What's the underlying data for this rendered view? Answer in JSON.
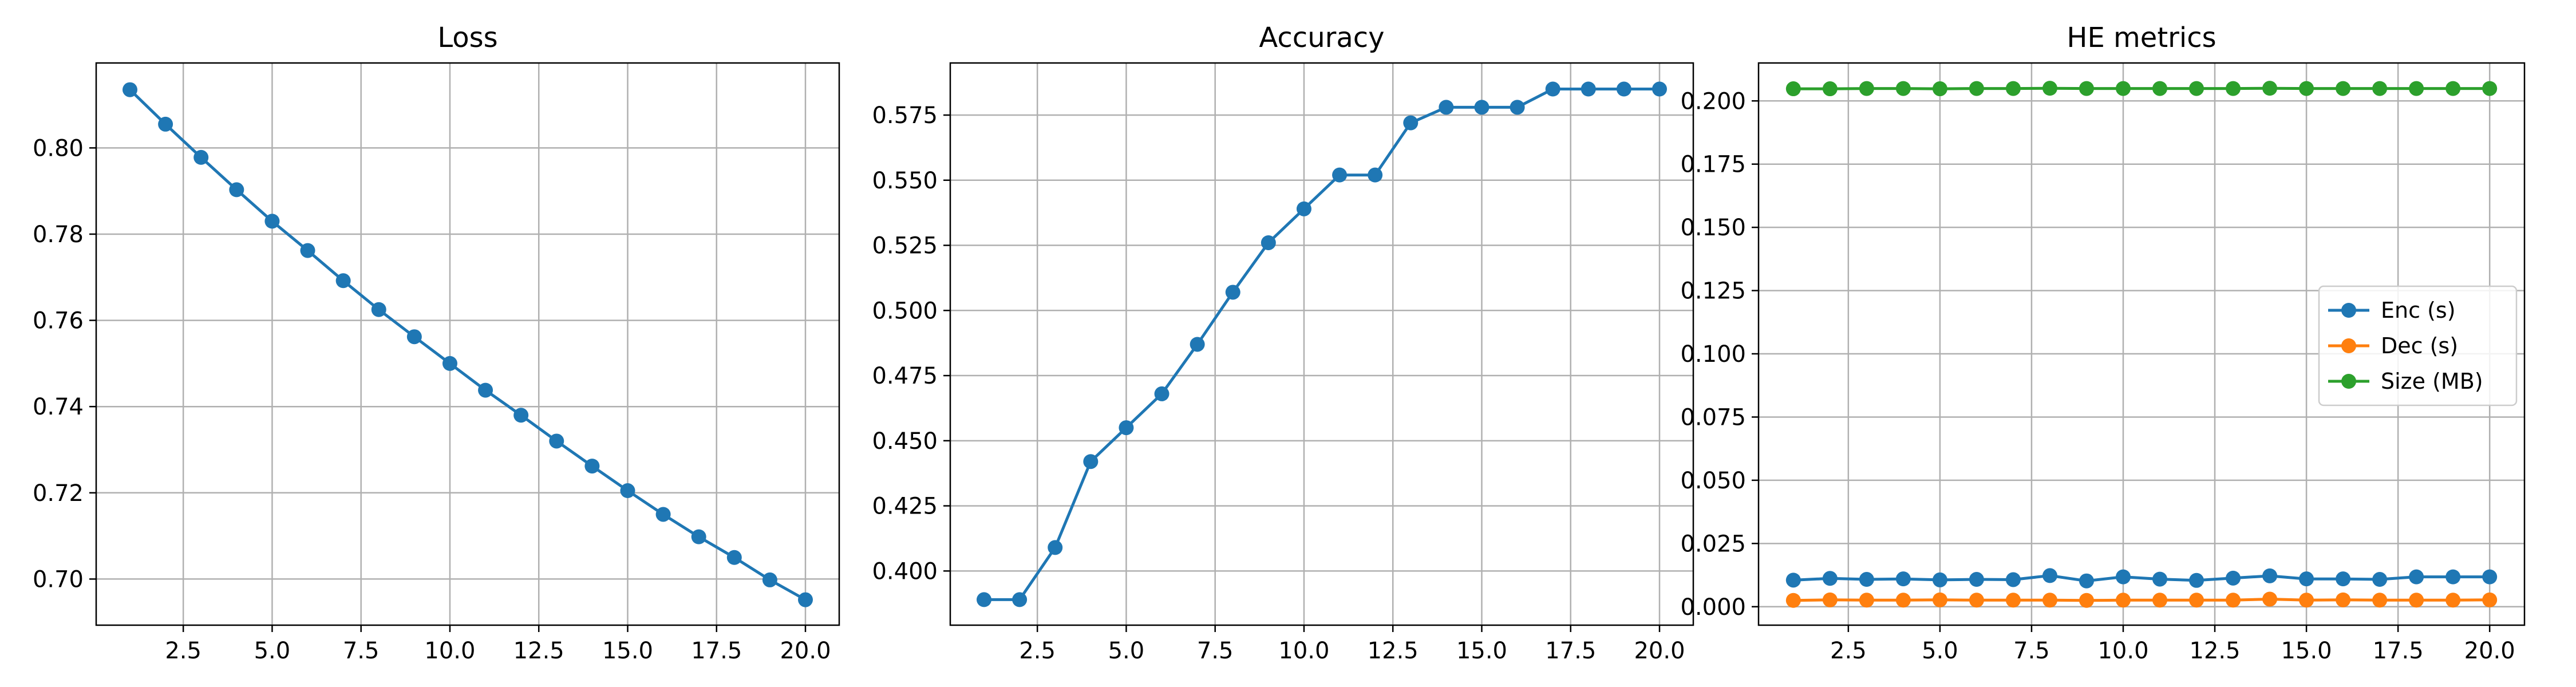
{
  "chart_data": [
    {
      "type": "line",
      "title": "Loss",
      "xlabel": "",
      "ylabel": "",
      "xlim": [
        0.05,
        20.95
      ],
      "ylim": [
        0.6893,
        0.8197
      ],
      "x_ticks": [
        2.5,
        5.0,
        7.5,
        10.0,
        12.5,
        15.0,
        17.5,
        20.0
      ],
      "x_tick_labels": [
        "2.5",
        "5.0",
        "7.5",
        "10.0",
        "12.5",
        "15.0",
        "17.5",
        "20.0"
      ],
      "y_ticks": [
        0.7,
        0.72,
        0.74,
        0.76,
        0.78,
        0.8
      ],
      "y_tick_labels": [
        "0.70",
        "0.72",
        "0.74",
        "0.76",
        "0.78",
        "0.80"
      ],
      "grid": true,
      "legend": null,
      "x": [
        1,
        2,
        3,
        4,
        5,
        6,
        7,
        8,
        9,
        10,
        11,
        12,
        13,
        14,
        15,
        16,
        17,
        18,
        19,
        20
      ],
      "series": [
        {
          "color": "#1f77b4",
          "values": [
            0.8135,
            0.8055,
            0.7978,
            0.7903,
            0.783,
            0.7762,
            0.7692,
            0.7625,
            0.7562,
            0.75,
            0.7438,
            0.738,
            0.732,
            0.7262,
            0.7205,
            0.715,
            0.7098,
            0.705,
            0.6998,
            0.6952
          ]
        }
      ]
    },
    {
      "type": "line",
      "title": "Accuracy",
      "xlabel": "",
      "ylabel": "",
      "xlim": [
        0.05,
        20.95
      ],
      "ylim": [
        0.3792,
        0.595
      ],
      "x_ticks": [
        2.5,
        5.0,
        7.5,
        10.0,
        12.5,
        15.0,
        17.5,
        20.0
      ],
      "x_tick_labels": [
        "2.5",
        "5.0",
        "7.5",
        "10.0",
        "12.5",
        "15.0",
        "17.5",
        "20.0"
      ],
      "y_ticks": [
        0.4,
        0.425,
        0.45,
        0.475,
        0.5,
        0.525,
        0.55,
        0.575
      ],
      "y_tick_labels": [
        "0.400",
        "0.425",
        "0.450",
        "0.475",
        "0.500",
        "0.525",
        "0.550",
        "0.575"
      ],
      "grid": true,
      "legend": null,
      "x": [
        1,
        2,
        3,
        4,
        5,
        6,
        7,
        8,
        9,
        10,
        11,
        12,
        13,
        14,
        15,
        16,
        17,
        18,
        19,
        20
      ],
      "series": [
        {
          "color": "#1f77b4",
          "values": [
            0.389,
            0.389,
            0.409,
            0.442,
            0.455,
            0.468,
            0.487,
            0.507,
            0.526,
            0.539,
            0.552,
            0.552,
            0.572,
            0.578,
            0.578,
            0.578,
            0.585,
            0.585,
            0.585,
            0.585
          ]
        }
      ]
    },
    {
      "type": "line",
      "title": "HE metrics",
      "xlabel": "",
      "ylabel": "",
      "xlim": [
        0.05,
        20.95
      ],
      "ylim": [
        -0.0073,
        0.215
      ],
      "x_ticks": [
        2.5,
        5.0,
        7.5,
        10.0,
        12.5,
        15.0,
        17.5,
        20.0
      ],
      "x_tick_labels": [
        "2.5",
        "5.0",
        "7.5",
        "10.0",
        "12.5",
        "15.0",
        "17.5",
        "20.0"
      ],
      "y_ticks": [
        0.0,
        0.025,
        0.05,
        0.075,
        0.1,
        0.125,
        0.15,
        0.175,
        0.2
      ],
      "y_tick_labels": [
        "0.000",
        "0.025",
        "0.050",
        "0.075",
        "0.100",
        "0.125",
        "0.150",
        "0.175",
        "0.200"
      ],
      "grid": true,
      "legend": "center-right",
      "x": [
        1,
        2,
        3,
        4,
        5,
        6,
        7,
        8,
        9,
        10,
        11,
        12,
        13,
        14,
        15,
        16,
        17,
        18,
        19,
        20
      ],
      "series": [
        {
          "name": "Enc (s)",
          "color": "#1f77b4",
          "values": [
            0.0105,
            0.0112,
            0.0108,
            0.011,
            0.0106,
            0.0108,
            0.0107,
            0.0123,
            0.0102,
            0.0118,
            0.0109,
            0.0104,
            0.0113,
            0.0122,
            0.011,
            0.011,
            0.0108,
            0.0118,
            0.0118,
            0.0118
          ]
        },
        {
          "name": "Dec (s)",
          "color": "#ff7f0e",
          "values": [
            0.0025,
            0.0027,
            0.0026,
            0.0026,
            0.0027,
            0.0026,
            0.0026,
            0.0026,
            0.0025,
            0.0026,
            0.0026,
            0.0026,
            0.0026,
            0.003,
            0.0026,
            0.0027,
            0.0026,
            0.0026,
            0.0026,
            0.0027
          ]
        },
        {
          "name": "Size (MB)",
          "color": "#2ca02c",
          "values": [
            0.2048,
            0.2048,
            0.2049,
            0.2049,
            0.2048,
            0.2049,
            0.2049,
            0.205,
            0.2049,
            0.2049,
            0.2049,
            0.2049,
            0.2049,
            0.205,
            0.2049,
            0.2049,
            0.2049,
            0.2049,
            0.2049,
            0.2049
          ]
        }
      ]
    }
  ]
}
